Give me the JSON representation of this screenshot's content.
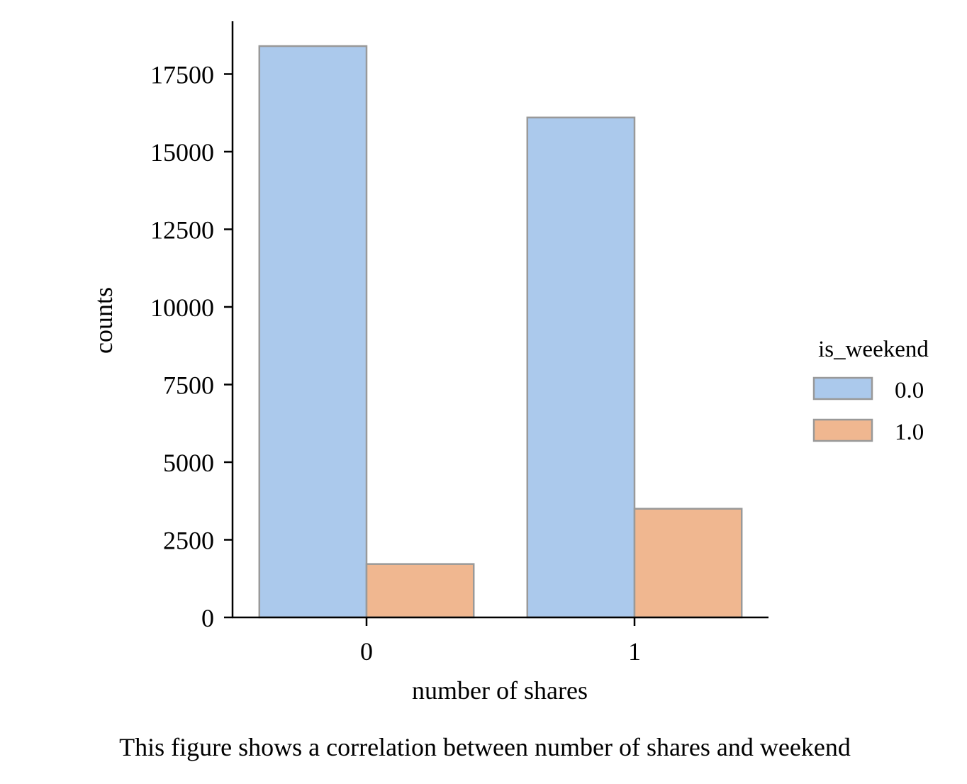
{
  "chart_data": {
    "type": "bar",
    "categories": [
      "0",
      "1"
    ],
    "series": [
      {
        "name": "0.0",
        "values": [
          18400,
          16100
        ],
        "color": "#abc9ec"
      },
      {
        "name": "1.0",
        "values": [
          1720,
          3500
        ],
        "color": "#f0b790"
      }
    ],
    "edge_color": "#999999",
    "xlabel": "number of shares",
    "ylabel": "counts",
    "ylim": [
      0,
      19200
    ],
    "yticks": [
      0,
      2500,
      5000,
      7500,
      10000,
      12500,
      15000,
      17500
    ],
    "ytick_labels": [
      "0",
      "2500",
      "5000",
      "7500",
      "10000",
      "12500",
      "15000",
      "17500"
    ],
    "legend": {
      "title": "is_weekend",
      "placement": "right",
      "entries": [
        "0.0",
        "1.0"
      ]
    },
    "grid": false
  },
  "caption": "This figure shows a correlation between number of shares and weekend"
}
